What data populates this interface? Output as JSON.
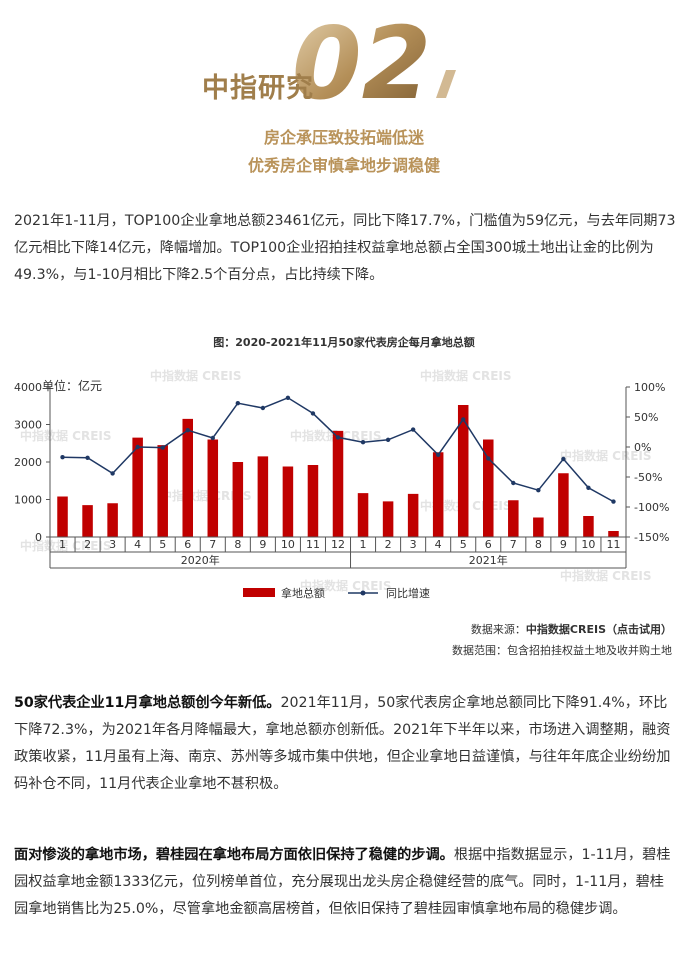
{
  "header": {
    "brand": "中指研究",
    "number": "02",
    "subtitle_line1": "房企承压致投拓端低迷",
    "subtitle_line2": "优秀房企审慎拿地步调稳健"
  },
  "paragraph1": "2021年1-11月，TOP100企业拿地总额23461亿元，同比下降17.7%，门槛值为59亿元，与去年同期73亿元相比下降14亿元，降幅增加。TOP100企业招拍挂权益拿地总额占全国300城土地出让金的比例为49.3%，与1-10月相比下降2.5个百分点，占比持续下降。",
  "chart_data": {
    "type": "bar",
    "title": "图：2020-2021年11月50家代表房企每月拿地总额",
    "unit_label": "单位：亿元",
    "watermark": "中指数据 CREIS",
    "categories": [
      "1",
      "2",
      "3",
      "4",
      "5",
      "6",
      "7",
      "8",
      "9",
      "10",
      "11",
      "12",
      "1",
      "2",
      "3",
      "4",
      "5",
      "6",
      "7",
      "8",
      "9",
      "10",
      "11"
    ],
    "year_labels": [
      "2020年",
      "2021年"
    ],
    "series": [
      {
        "name": "拿地总额",
        "kind": "bar",
        "axis": "left",
        "color": "#c00000",
        "values": [
          1080,
          850,
          900,
          2650,
          2450,
          3150,
          2600,
          2000,
          2150,
          1880,
          1920,
          2830,
          1170,
          950,
          1150,
          2260,
          3520,
          2600,
          980,
          520,
          1700,
          560,
          160
        ]
      },
      {
        "name": "同比增速",
        "kind": "line",
        "axis": "right",
        "color": "#1f3864",
        "unit": "%",
        "values": [
          -17,
          -18,
          -44,
          0,
          -1,
          28,
          15,
          73,
          65,
          82,
          56,
          16,
          8,
          12,
          29,
          -13,
          46,
          -19,
          -60,
          -72,
          -20,
          -68,
          -91
        ]
      }
    ],
    "left_axis": {
      "min": 0,
      "max": 4000,
      "ticks": [
        "0",
        "1000",
        "2000",
        "3000",
        "4000"
      ]
    },
    "right_axis": {
      "min": -150,
      "max": 100,
      "ticks": [
        "100%",
        "50%",
        "0%",
        "-50%",
        "-100%",
        "-150%"
      ]
    }
  },
  "source": {
    "label": "数据来源：",
    "name": "中指数据CREIS（点击试用）",
    "scope": "数据范围：包含招拍挂权益土地及收并购土地"
  },
  "paragraph2": {
    "bold": "50家代表企业11月拿地总额创今年新低。",
    "text": "2021年11月，50家代表房企拿地总额同比下降91.4%，环比下降72.3%，为2021年各月降幅最大，拿地总额亦创新低。2021年下半年以来，市场进入调整期，融资政策收紧，11月虽有上海、南京、苏州等多城市集中供地，但企业拿地日益谨慎，与往年年底企业纷纷加码补仓不同，11月代表企业拿地不甚积极。"
  },
  "paragraph3": {
    "bold": "面对惨淡的拿地市场，碧桂园在拿地布局方面依旧保持了稳健的步调。",
    "text": "根据中指数据显示，1-11月，碧桂园权益拿地金额1333亿元，位列榜单首位，充分展现出龙头房企稳健经营的底气。同时，1-11月，碧桂园拿地销售比为25.0%，尽管拿地金额高居榜首，但依旧保持了碧桂园审慎拿地布局的稳健步调。"
  },
  "colors": {
    "gold": "#b9935a",
    "bar": "#c00000",
    "line": "#1f3864"
  }
}
